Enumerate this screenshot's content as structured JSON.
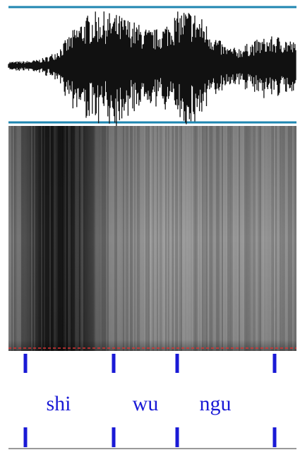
{
  "segments": [
    {
      "label": "shi"
    },
    {
      "label": "wu"
    },
    {
      "label": "ngu"
    }
  ]
}
